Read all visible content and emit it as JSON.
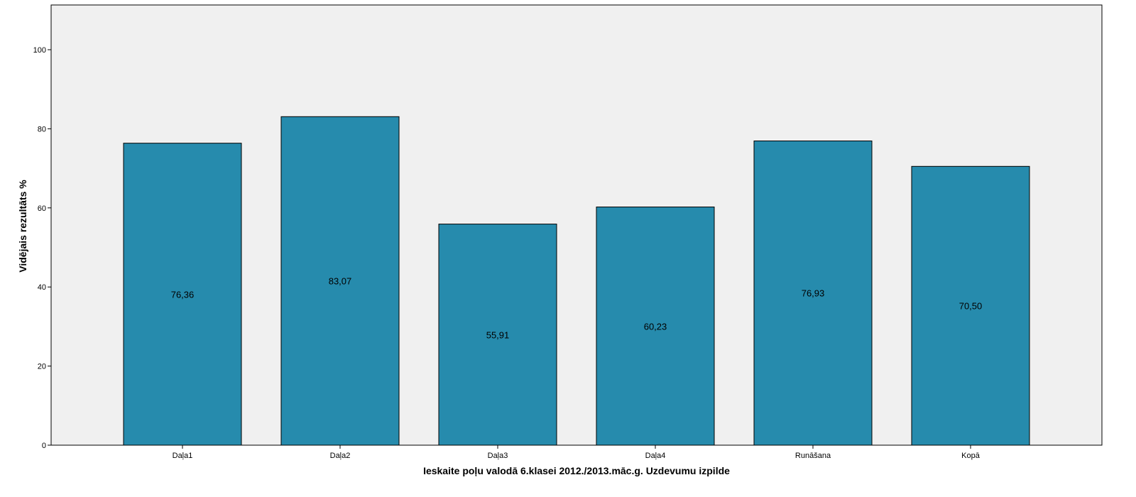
{
  "chart_data": {
    "type": "bar",
    "title": "",
    "xlabel": "Ieskaite poļu valodā 6.klasei 2012./2013.māc.g. Uzdevumu izpilde",
    "ylabel": "Vidējais rezultāts %",
    "categories": [
      "Daļa1",
      "Daļa2",
      "Daļa3",
      "Daļa4",
      "Runāšana",
      "Kopā"
    ],
    "values": [
      76.36,
      83.07,
      55.91,
      60.23,
      76.93,
      70.5
    ],
    "value_labels": [
      "76,36",
      "83,07",
      "55,91",
      "60,23",
      "76,93",
      "70,50"
    ],
    "ylim": [
      0,
      100
    ],
    "yticks": [
      0,
      20,
      40,
      60,
      80,
      100
    ],
    "ytick_labels": [
      "0",
      "20",
      "40",
      "60",
      "80",
      "100"
    ],
    "grid": false,
    "legend": "none"
  },
  "colors": {
    "bar_fill": "#268bad",
    "bar_stroke": "#000000",
    "plot_background": "#f0f0f0",
    "axis": "#000000"
  }
}
